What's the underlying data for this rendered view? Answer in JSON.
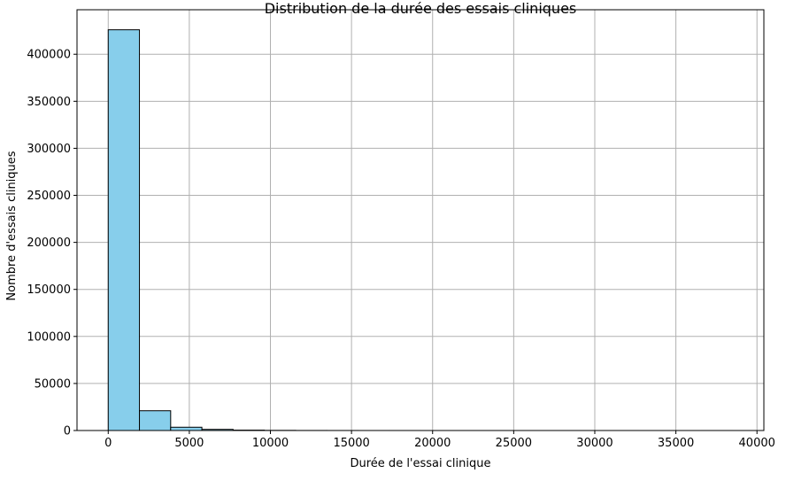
{
  "chart_data": {
    "type": "bar",
    "title": "Distribution de la durée des essais cliniques",
    "xlabel": "Durée de l'essai clinique",
    "ylabel": "Nombre d'essais cliniques",
    "bins": [
      {
        "x0": 0,
        "x1": 1925,
        "value": 426000
      },
      {
        "x0": 1925,
        "x1": 3850,
        "value": 21000
      },
      {
        "x0": 3850,
        "x1": 5775,
        "value": 3500
      },
      {
        "x0": 5775,
        "x1": 7700,
        "value": 1200
      },
      {
        "x0": 7700,
        "x1": 9625,
        "value": 400
      },
      {
        "x0": 9625,
        "x1": 11550,
        "value": 150
      },
      {
        "x0": 11550,
        "x1": 13475,
        "value": 60
      },
      {
        "x0": 13475,
        "x1": 15400,
        "value": 30
      },
      {
        "x0": 15400,
        "x1": 17325,
        "value": 15
      },
      {
        "x0": 17325,
        "x1": 19250,
        "value": 8
      },
      {
        "x0": 19250,
        "x1": 21175,
        "value": 5
      },
      {
        "x0": 21175,
        "x1": 23100,
        "value": 3
      },
      {
        "x0": 23100,
        "x1": 25025,
        "value": 2
      },
      {
        "x0": 25025,
        "x1": 26950,
        "value": 1
      },
      {
        "x0": 26950,
        "x1": 28875,
        "value": 1
      },
      {
        "x0": 28875,
        "x1": 30800,
        "value": 1
      },
      {
        "x0": 30800,
        "x1": 32725,
        "value": 1
      },
      {
        "x0": 32725,
        "x1": 34650,
        "value": 0
      },
      {
        "x0": 34650,
        "x1": 36575,
        "value": 0
      },
      {
        "x0": 36575,
        "x1": 38500,
        "value": 1
      }
    ],
    "xlim": [
      -1925,
      40425
    ],
    "ylim": [
      0,
      447300
    ],
    "xticks": [
      0,
      5000,
      10000,
      15000,
      20000,
      25000,
      30000,
      35000,
      40000
    ],
    "yticks": [
      0,
      50000,
      100000,
      150000,
      200000,
      250000,
      300000,
      350000,
      400000
    ],
    "grid": true,
    "colors": {
      "bar_fill": "#87ceeb",
      "bar_edge": "#000000",
      "grid": "#b0b0b0",
      "axis": "#000000"
    }
  }
}
